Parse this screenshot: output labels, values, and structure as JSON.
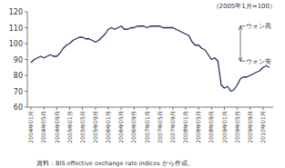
{
  "chart_data": {
    "type": "line",
    "y_label": "（2005年1月=100）",
    "source": "資料：BIS effective exchange rate indices から作成。",
    "annotations": [
      "ウォン高",
      "ウォン安"
    ],
    "categories": [
      "2004年01月",
      null,
      null,
      null,
      "2004年05月",
      null,
      null,
      null,
      "2004年09月",
      null,
      null,
      null,
      "2005年01月",
      null,
      null,
      null,
      "2005年05月",
      null,
      null,
      null,
      "2005年09月",
      null,
      null,
      null,
      "2006年01月",
      null,
      null,
      null,
      "2006年05月",
      null,
      null,
      null,
      "2006年09月",
      null,
      null,
      null,
      "2007年01月",
      null,
      null,
      null,
      "2007年05月",
      null,
      null,
      null,
      "2007年09月",
      null,
      null,
      null,
      "2008年01月",
      null,
      null,
      null,
      "2008年05月",
      null,
      null,
      null,
      "2008年09月",
      null,
      null,
      null,
      "2009年01月",
      null,
      null,
      null,
      "2009年05月",
      null,
      null,
      null,
      "2009年09月",
      null,
      null,
      null,
      "2010年01月",
      null,
      null
    ],
    "series": [
      {
        "name": "ウォン",
        "color": "#1f2f5c",
        "values": [
          88,
          90,
          91,
          92,
          91,
          92,
          93,
          92,
          92,
          94,
          97,
          99,
          100,
          102,
          103,
          104,
          104,
          103,
          103,
          102,
          101,
          102,
          104,
          106,
          109,
          110,
          109,
          110,
          111,
          109,
          109,
          110,
          110,
          111,
          111,
          111,
          110,
          111,
          111,
          111,
          111,
          110,
          110,
          110,
          110,
          109,
          108,
          107,
          106,
          105,
          101,
          99,
          99,
          97,
          96,
          93,
          90,
          91,
          89,
          74,
          72,
          73,
          70,
          71,
          74,
          78,
          79,
          79,
          80,
          81,
          82,
          83,
          85,
          86,
          85
        ]
      }
    ],
    "ylim": [
      60,
      120
    ],
    "yticks": [
      60,
      70,
      80,
      90,
      100,
      110,
      120
    ],
    "grid": false
  }
}
